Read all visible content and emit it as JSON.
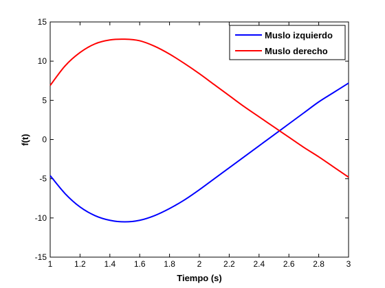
{
  "chart_data": {
    "type": "line",
    "title": "",
    "xlabel": "Tiempo (s)",
    "ylabel": "f(t)",
    "xlim": [
      1,
      3
    ],
    "ylim": [
      -15,
      15
    ],
    "xticks": [
      1,
      1.2,
      1.4,
      1.6,
      1.8,
      2,
      2.2,
      2.4,
      2.6,
      2.8,
      3
    ],
    "xtick_labels": [
      "1",
      "1.2",
      "1.4",
      "1.6",
      "1.8",
      "2",
      "2.2",
      "2.4",
      "2.6",
      "2.8",
      "3"
    ],
    "yticks": [
      -15,
      -10,
      -5,
      0,
      5,
      10,
      15
    ],
    "ytick_labels": [
      "-15",
      "-10",
      "-5",
      "0",
      "5",
      "10",
      "15"
    ],
    "grid": false,
    "legend_position": "top-right",
    "x": [
      1.0,
      1.1,
      1.2,
      1.3,
      1.4,
      1.5,
      1.6,
      1.7,
      1.8,
      1.9,
      2.0,
      2.1,
      2.2,
      2.3,
      2.4,
      2.5,
      2.6,
      2.7,
      2.8,
      2.9,
      3.0
    ],
    "series": [
      {
        "name": "Muslo izquierdo",
        "color": "#0000ff",
        "values": [
          -4.6,
          -6.9,
          -8.6,
          -9.7,
          -10.3,
          -10.5,
          -10.3,
          -9.7,
          -8.8,
          -7.7,
          -6.4,
          -5.0,
          -3.6,
          -2.2,
          -0.8,
          0.6,
          2.0,
          3.4,
          4.8,
          6.0,
          7.2
        ]
      },
      {
        "name": "Muslo derecho",
        "color": "#ff0000",
        "values": [
          6.9,
          9.4,
          11.1,
          12.2,
          12.7,
          12.8,
          12.6,
          11.9,
          10.9,
          9.7,
          8.4,
          7.0,
          5.6,
          4.2,
          2.9,
          1.6,
          0.3,
          -1.0,
          -2.2,
          -3.5,
          -4.8
        ]
      }
    ]
  }
}
